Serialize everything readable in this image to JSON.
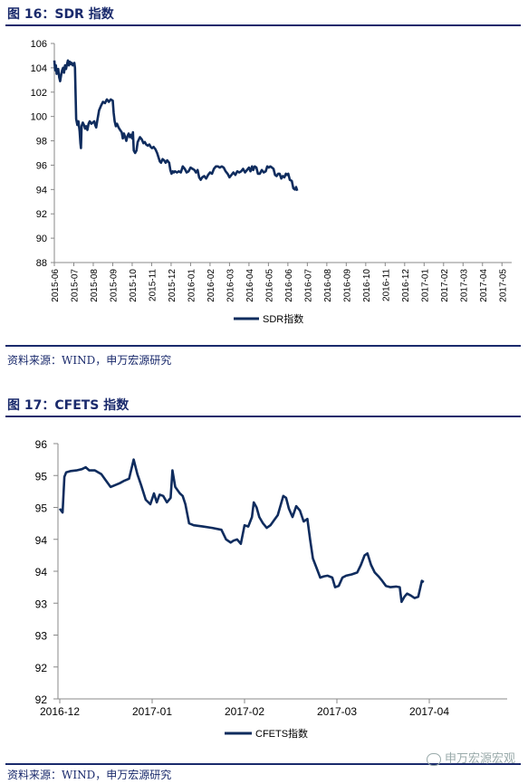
{
  "figure1": {
    "title": "图 16：SDR 指数",
    "source": "资料来源：WIND，申万宏源研究",
    "chart_data": {
      "type": "line",
      "ylim": [
        88,
        106
      ],
      "yticks": [
        88,
        90,
        92,
        94,
        96,
        98,
        100,
        102,
        104,
        106
      ],
      "x_tick_labels": [
        "2015-06",
        "2015-07",
        "2015-08",
        "2015-09",
        "2015-10",
        "2015-11",
        "2015-12",
        "2016-01",
        "2016-02",
        "2016-03",
        "2016-04",
        "2016-05",
        "2016-06",
        "2016-07",
        "2016-08",
        "2016-09",
        "2016-10",
        "2016-11",
        "2016-12",
        "2017-01",
        "2017-02",
        "2017-03",
        "2017-04",
        "2017-05"
      ],
      "legend_position": "bottom-center",
      "series": [
        {
          "name": "SDR指数",
          "color": "#0f2c5e",
          "points": [
            [
              0.0,
              104.6
            ],
            [
              0.04,
              103.8
            ],
            [
              0.08,
              104.2
            ],
            [
              0.12,
              103.5
            ],
            [
              0.16,
              103.6
            ],
            [
              0.2,
              103.9
            ],
            [
              0.25,
              103.2
            ],
            [
              0.3,
              102.9
            ],
            [
              0.35,
              103.4
            ],
            [
              0.4,
              103.8
            ],
            [
              0.45,
              104.0
            ],
            [
              0.5,
              103.6
            ],
            [
              0.55,
              104.2
            ],
            [
              0.6,
              103.9
            ],
            [
              0.65,
              104.3
            ],
            [
              0.7,
              104.6
            ],
            [
              0.75,
              104.2
            ],
            [
              0.8,
              104.5
            ],
            [
              0.85,
              104.3
            ],
            [
              0.9,
              104.4
            ],
            [
              0.95,
              104.2
            ],
            [
              1.0,
              104.3
            ],
            [
              1.03,
              104.4
            ],
            [
              1.06,
              104.0
            ],
            [
              1.12,
              99.8
            ],
            [
              1.18,
              99.3
            ],
            [
              1.24,
              99.6
            ],
            [
              1.3,
              98.8
            ],
            [
              1.34,
              97.8
            ],
            [
              1.37,
              97.4
            ],
            [
              1.4,
              99.2
            ],
            [
              1.46,
              99.5
            ],
            [
              1.52,
              99.3
            ],
            [
              1.58,
              99.0
            ],
            [
              1.64,
              99.2
            ],
            [
              1.7,
              98.9
            ],
            [
              1.76,
              99.4
            ],
            [
              1.82,
              99.6
            ],
            [
              1.9,
              99.4
            ],
            [
              1.98,
              99.5
            ],
            [
              2.05,
              99.6
            ],
            [
              2.1,
              99.3
            ],
            [
              2.15,
              99.1
            ],
            [
              2.2,
              99.6
            ],
            [
              2.3,
              100.5
            ],
            [
              2.4,
              100.9
            ],
            [
              2.5,
              101.2
            ],
            [
              2.6,
              101.1
            ],
            [
              2.7,
              101.4
            ],
            [
              2.8,
              101.2
            ],
            [
              2.9,
              101.4
            ],
            [
              3.0,
              101.3
            ],
            [
              3.05,
              100.3
            ],
            [
              3.1,
              99.6
            ],
            [
              3.16,
              99.2
            ],
            [
              3.22,
              99.4
            ],
            [
              3.3,
              99.1
            ],
            [
              3.38,
              98.9
            ],
            [
              3.46,
              98.7
            ],
            [
              3.52,
              98.2
            ],
            [
              3.58,
              98.6
            ],
            [
              3.64,
              98.3
            ],
            [
              3.7,
              98.0
            ],
            [
              3.76,
              98.4
            ],
            [
              3.82,
              98.6
            ],
            [
              3.88,
              98.3
            ],
            [
              3.94,
              98.5
            ],
            [
              4.0,
              98.2
            ],
            [
              4.04,
              98.7
            ],
            [
              4.08,
              97.2
            ],
            [
              4.15,
              97.0
            ],
            [
              4.22,
              97.2
            ],
            [
              4.28,
              97.9
            ],
            [
              4.34,
              98.1
            ],
            [
              4.4,
              98.3
            ],
            [
              4.5,
              98.1
            ],
            [
              4.58,
              97.8
            ],
            [
              4.65,
              97.9
            ],
            [
              4.72,
              97.7
            ],
            [
              4.8,
              97.6
            ],
            [
              4.88,
              97.7
            ],
            [
              4.95,
              97.5
            ],
            [
              5.02,
              97.4
            ],
            [
              5.1,
              97.5
            ],
            [
              5.2,
              97.3
            ],
            [
              5.28,
              97.0
            ],
            [
              5.36,
              96.6
            ],
            [
              5.42,
              96.3
            ],
            [
              5.48,
              96.2
            ],
            [
              5.56,
              96.5
            ],
            [
              5.64,
              96.4
            ],
            [
              5.72,
              96.2
            ],
            [
              5.8,
              96.4
            ],
            [
              5.9,
              96.2
            ],
            [
              5.96,
              95.6
            ],
            [
              6.02,
              95.3
            ],
            [
              6.08,
              95.5
            ],
            [
              6.14,
              95.4
            ],
            [
              6.2,
              95.5
            ],
            [
              6.3,
              95.4
            ],
            [
              6.4,
              95.5
            ],
            [
              6.5,
              95.4
            ],
            [
              6.6,
              95.9
            ],
            [
              6.7,
              95.7
            ],
            [
              6.8,
              95.4
            ],
            [
              6.9,
              95.5
            ],
            [
              7.0,
              95.8
            ],
            [
              7.1,
              95.7
            ],
            [
              7.2,
              95.6
            ],
            [
              7.28,
              95.4
            ],
            [
              7.36,
              95.6
            ],
            [
              7.44,
              95.0
            ],
            [
              7.52,
              94.8
            ],
            [
              7.6,
              95.0
            ],
            [
              7.7,
              95.1
            ],
            [
              7.8,
              94.9
            ],
            [
              7.9,
              95.2
            ],
            [
              8.0,
              95.4
            ],
            [
              8.1,
              95.3
            ],
            [
              8.2,
              95.7
            ],
            [
              8.3,
              95.9
            ],
            [
              8.4,
              95.9
            ],
            [
              8.5,
              95.8
            ],
            [
              8.6,
              95.9
            ],
            [
              8.7,
              95.8
            ],
            [
              8.8,
              95.5
            ],
            [
              8.9,
              95.3
            ],
            [
              9.0,
              95.0
            ],
            [
              9.1,
              95.2
            ],
            [
              9.2,
              95.4
            ],
            [
              9.3,
              95.2
            ],
            [
              9.4,
              95.5
            ],
            [
              9.5,
              95.4
            ],
            [
              9.6,
              95.5
            ],
            [
              9.7,
              95.7
            ],
            [
              9.8,
              95.4
            ],
            [
              9.9,
              95.6
            ],
            [
              10.0,
              95.8
            ],
            [
              10.08,
              95.5
            ],
            [
              10.16,
              95.9
            ],
            [
              10.22,
              95.6
            ],
            [
              10.3,
              95.9
            ],
            [
              10.38,
              95.8
            ],
            [
              10.46,
              95.3
            ],
            [
              10.56,
              95.3
            ],
            [
              10.66,
              95.6
            ],
            [
              10.76,
              95.4
            ],
            [
              10.86,
              95.5
            ],
            [
              10.94,
              95.9
            ],
            [
              11.02,
              95.8
            ],
            [
              11.1,
              95.9
            ],
            [
              11.18,
              95.8
            ],
            [
              11.26,
              95.7
            ],
            [
              11.34,
              95.2
            ],
            [
              11.42,
              95.1
            ],
            [
              11.5,
              95.3
            ],
            [
              11.58,
              95.3
            ],
            [
              11.66,
              94.9
            ],
            [
              11.74,
              95.1
            ],
            [
              11.82,
              95.0
            ],
            [
              11.9,
              95.3
            ],
            [
              11.96,
              95.2
            ],
            [
              12.02,
              95.3
            ],
            [
              12.1,
              94.8
            ],
            [
              12.2,
              94.7
            ],
            [
              12.28,
              94.1
            ],
            [
              12.36,
              94.0
            ],
            [
              12.42,
              94.2
            ],
            [
              12.48,
              93.9
            ]
          ]
        }
      ]
    }
  },
  "figure2": {
    "title": "图 17：CFETS 指数",
    "source": "资料来源：WIND，申万宏源研究",
    "watermark": "申万宏源宏观",
    "chart_data": {
      "type": "line",
      "ylim": [
        92,
        96
      ],
      "yticks": [
        92,
        92.5,
        93,
        93.5,
        94,
        94.5,
        95,
        95.5,
        96
      ],
      "ytick_labels": [
        "92",
        "92",
        "93",
        "93",
        "94",
        "94",
        "95",
        "95",
        "96"
      ],
      "x_tick_labels": [
        "2016-12",
        "2017-01",
        "2017-02",
        "2017-03",
        "2017-04"
      ],
      "legend_position": "bottom-center",
      "series": [
        {
          "name": "CFETS指数",
          "color": "#0f2c5e",
          "points": [
            [
              0.0,
              94.98
            ],
            [
              0.03,
              94.92
            ],
            [
              0.05,
              95.48
            ],
            [
              0.07,
              95.55
            ],
            [
              0.12,
              95.57
            ],
            [
              0.18,
              95.58
            ],
            [
              0.24,
              95.6
            ],
            [
              0.28,
              95.63
            ],
            [
              0.32,
              95.58
            ],
            [
              0.38,
              95.58
            ],
            [
              0.45,
              95.52
            ],
            [
              0.5,
              95.42
            ],
            [
              0.55,
              95.32
            ],
            [
              0.6,
              95.35
            ],
            [
              0.65,
              95.38
            ],
            [
              0.7,
              95.42
            ],
            [
              0.75,
              95.45
            ],
            [
              0.8,
              95.75
            ],
            [
              0.84,
              95.52
            ],
            [
              0.88,
              95.35
            ],
            [
              0.93,
              95.12
            ],
            [
              0.98,
              95.05
            ],
            [
              1.02,
              95.22
            ],
            [
              1.05,
              95.08
            ],
            [
              1.08,
              95.2
            ],
            [
              1.12,
              95.18
            ],
            [
              1.16,
              95.08
            ],
            [
              1.2,
              95.15
            ],
            [
              1.22,
              95.58
            ],
            [
              1.25,
              95.32
            ],
            [
              1.3,
              95.22
            ],
            [
              1.33,
              95.18
            ],
            [
              1.36,
              95.05
            ],
            [
              1.4,
              94.75
            ],
            [
              1.45,
              94.72
            ],
            [
              1.55,
              94.7
            ],
            [
              1.65,
              94.68
            ],
            [
              1.75,
              94.65
            ],
            [
              1.8,
              94.5
            ],
            [
              1.85,
              94.45
            ],
            [
              1.88,
              94.48
            ],
            [
              1.92,
              94.5
            ],
            [
              1.96,
              94.43
            ],
            [
              2.0,
              94.72
            ],
            [
              2.04,
              94.7
            ],
            [
              2.08,
              94.85
            ],
            [
              2.1,
              95.08
            ],
            [
              2.13,
              95.0
            ],
            [
              2.16,
              94.85
            ],
            [
              2.2,
              94.75
            ],
            [
              2.24,
              94.68
            ],
            [
              2.28,
              94.72
            ],
            [
              2.32,
              94.8
            ],
            [
              2.36,
              94.88
            ],
            [
              2.42,
              95.18
            ],
            [
              2.45,
              95.15
            ],
            [
              2.48,
              94.98
            ],
            [
              2.52,
              94.85
            ],
            [
              2.56,
              95.02
            ],
            [
              2.6,
              94.95
            ],
            [
              2.64,
              94.78
            ],
            [
              2.68,
              94.82
            ],
            [
              2.71,
              94.5
            ],
            [
              2.74,
              94.2
            ],
            [
              2.78,
              94.05
            ],
            [
              2.82,
              93.9
            ],
            [
              2.86,
              93.92
            ],
            [
              2.9,
              93.93
            ],
            [
              2.95,
              93.9
            ],
            [
              2.98,
              93.75
            ],
            [
              3.02,
              93.77
            ],
            [
              3.06,
              93.9
            ],
            [
              3.1,
              93.93
            ],
            [
              3.16,
              93.95
            ],
            [
              3.22,
              93.98
            ],
            [
              3.26,
              94.1
            ],
            [
              3.3,
              94.25
            ],
            [
              3.33,
              94.28
            ],
            [
              3.37,
              94.1
            ],
            [
              3.41,
              93.98
            ],
            [
              3.45,
              93.92
            ],
            [
              3.49,
              93.85
            ],
            [
              3.53,
              93.77
            ],
            [
              3.58,
              93.75
            ],
            [
              3.64,
              93.76
            ],
            [
              3.68,
              93.75
            ],
            [
              3.7,
              93.52
            ],
            [
              3.73,
              93.6
            ],
            [
              3.76,
              93.65
            ],
            [
              3.8,
              93.62
            ],
            [
              3.84,
              93.58
            ],
            [
              3.88,
              93.6
            ],
            [
              3.92,
              93.85
            ],
            [
              3.94,
              93.83
            ]
          ]
        }
      ]
    }
  }
}
